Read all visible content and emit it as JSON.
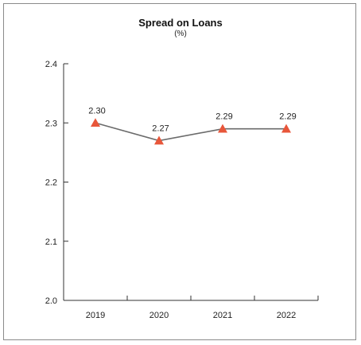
{
  "chart_data": {
    "type": "line",
    "title": "Spread on Loans",
    "subtitle": "(%)",
    "xlabel": "",
    "ylabel": "",
    "categories": [
      "2019",
      "2020",
      "2021",
      "2022"
    ],
    "values": [
      2.3,
      2.27,
      2.29,
      2.29
    ],
    "data_labels": [
      "2.30",
      "2.27",
      "2.29",
      "2.29"
    ],
    "ylim": [
      2.0,
      2.4
    ],
    "yticks": [
      "2.4",
      "2.3",
      "2.2",
      "2.1",
      "2.0"
    ],
    "ytick_values": [
      2.4,
      2.3,
      2.2,
      2.1,
      2.0
    ],
    "grid": false,
    "legend": "none",
    "line_color": "#6b6b6b",
    "marker": "triangle",
    "marker_color": "#e8563a"
  }
}
